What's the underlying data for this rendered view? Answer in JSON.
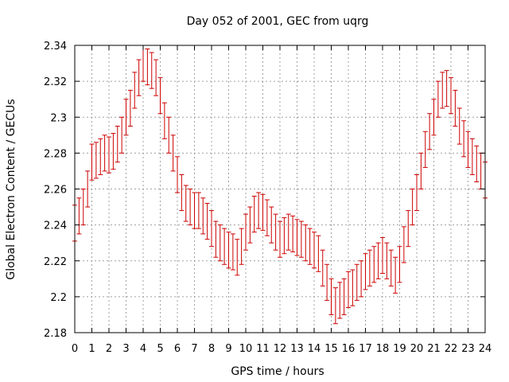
{
  "chart_data": {
    "type": "scatter",
    "title": "Day 052 of 2001, GEC from uqrg",
    "xlabel": "GPS time / hours",
    "ylabel": "Global Electron Content / GECUs",
    "xlim": [
      0,
      24
    ],
    "ylim": [
      2.18,
      2.34
    ],
    "xticks": [
      0,
      1,
      2,
      3,
      4,
      5,
      6,
      7,
      8,
      9,
      10,
      11,
      12,
      13,
      14,
      15,
      16,
      17,
      18,
      19,
      20,
      21,
      22,
      23,
      24
    ],
    "xtick_labels": [
      "0",
      "1",
      "2",
      "3",
      "4",
      "5",
      "6",
      "7",
      "8",
      "9",
      "10",
      "11",
      "12",
      "13",
      "14",
      "15",
      "16",
      "17",
      "18",
      "19",
      "20",
      "21",
      "22",
      "23",
      "24"
    ],
    "yticks": [
      2.18,
      2.2,
      2.22,
      2.24,
      2.26,
      2.28,
      2.3,
      2.32,
      2.34
    ],
    "ytick_labels": [
      "2.18",
      "2.2",
      "2.22",
      "2.24",
      "2.26",
      "2.28",
      "2.3",
      "2.32",
      "2.34"
    ],
    "grid": true,
    "legend": "none",
    "color": "#cc0000",
    "error_bar": 0.01,
    "x": [
      0,
      0.25,
      0.5,
      0.75,
      1,
      1.25,
      1.5,
      1.75,
      2,
      2.25,
      2.5,
      2.75,
      3,
      3.25,
      3.5,
      3.75,
      4,
      4.25,
      4.5,
      4.75,
      5,
      5.25,
      5.5,
      5.75,
      6,
      6.25,
      6.5,
      6.75,
      7,
      7.25,
      7.5,
      7.75,
      8,
      8.25,
      8.5,
      8.75,
      9,
      9.25,
      9.5,
      9.75,
      10,
      10.25,
      10.5,
      10.75,
      11,
      11.25,
      11.5,
      11.75,
      12,
      12.25,
      12.5,
      12.75,
      13,
      13.25,
      13.5,
      13.75,
      14,
      14.25,
      14.5,
      14.75,
      15,
      15.25,
      15.5,
      15.75,
      16,
      16.25,
      16.5,
      16.75,
      17,
      17.25,
      17.5,
      17.75,
      18,
      18.25,
      18.5,
      18.75,
      19,
      19.25,
      19.5,
      19.75,
      20,
      20.25,
      20.5,
      20.75,
      21,
      21.25,
      21.5,
      21.75,
      22,
      22.25,
      22.5,
      22.75,
      23,
      23.25,
      23.5,
      23.75,
      24
    ],
    "y": [
      2.241,
      2.245,
      2.25,
      2.26,
      2.275,
      2.276,
      2.278,
      2.28,
      2.279,
      2.281,
      2.285,
      2.29,
      2.3,
      2.305,
      2.315,
      2.322,
      2.33,
      2.328,
      2.326,
      2.322,
      2.312,
      2.298,
      2.29,
      2.28,
      2.268,
      2.258,
      2.252,
      2.25,
      2.248,
      2.248,
      2.245,
      2.242,
      2.238,
      2.232,
      2.23,
      2.228,
      2.226,
      2.225,
      2.222,
      2.228,
      2.236,
      2.24,
      2.246,
      2.248,
      2.247,
      2.244,
      2.24,
      2.236,
      2.232,
      2.234,
      2.236,
      2.235,
      2.233,
      2.232,
      2.23,
      2.228,
      2.226,
      2.224,
      2.216,
      2.208,
      2.2,
      2.195,
      2.198,
      2.2,
      2.204,
      2.205,
      2.208,
      2.21,
      2.214,
      2.216,
      2.218,
      2.22,
      2.223,
      2.22,
      2.216,
      2.212,
      2.218,
      2.229,
      2.238,
      2.25,
      2.258,
      2.27,
      2.282,
      2.292,
      2.3,
      2.31,
      2.315,
      2.316,
      2.312,
      2.305,
      2.295,
      2.288,
      2.282,
      2.278,
      2.274,
      2.27,
      2.265
    ]
  }
}
